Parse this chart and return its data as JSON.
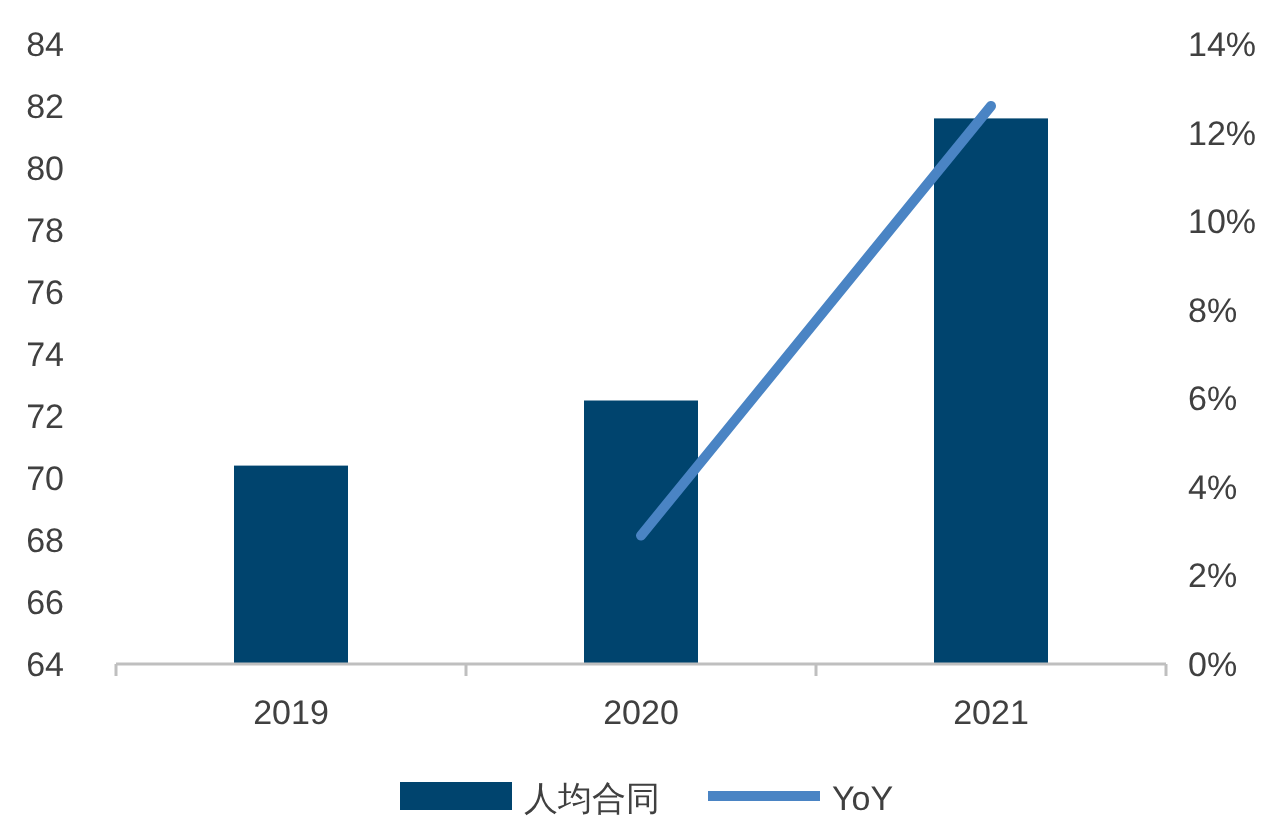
{
  "chart_data": {
    "type": "bar",
    "categories": [
      "2019",
      "2020",
      "2021"
    ],
    "series": [
      {
        "name": "人均合同",
        "color": "#00446e",
        "values": [
          70.4,
          72.5,
          81.6
        ]
      },
      {
        "name": "YoY",
        "type": "line",
        "axis": "y2",
        "color": "#4a84c4",
        "values": [
          null,
          2.9,
          12.6
        ]
      }
    ],
    "ylim": [
      64,
      84
    ],
    "yticks": [
      64,
      66,
      68,
      70,
      72,
      74,
      76,
      78,
      80,
      82,
      84
    ],
    "y2lim": [
      0,
      14
    ],
    "y2ticks": [
      {
        "value": 0,
        "label": "0%"
      },
      {
        "value": 2,
        "label": "2%"
      },
      {
        "value": 4,
        "label": "4%"
      },
      {
        "value": 6,
        "label": "6%"
      },
      {
        "value": 8,
        "label": "8%"
      },
      {
        "value": 10,
        "label": "10%"
      },
      {
        "value": 12,
        "label": "12%"
      },
      {
        "value": 14,
        "label": "14%"
      }
    ],
    "legend": "bottom",
    "grid": false,
    "marker": "none",
    "line_style": "solid"
  }
}
